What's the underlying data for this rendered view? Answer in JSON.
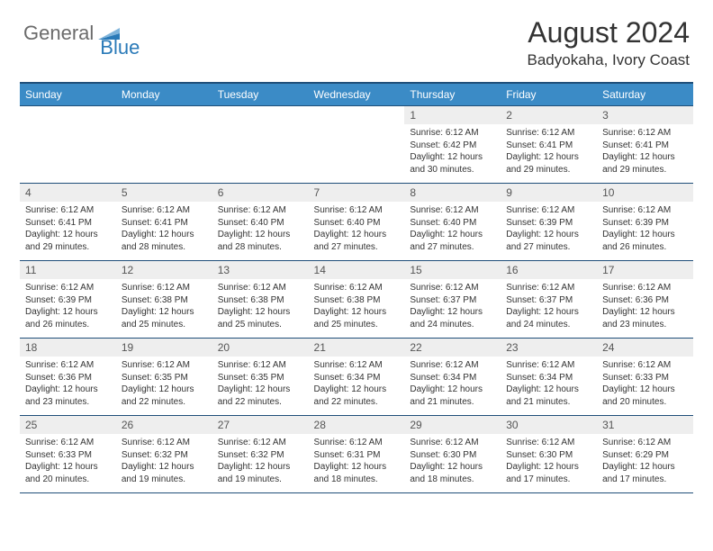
{
  "brand": {
    "text1": "General",
    "text2": "Blue",
    "color1": "#6b6b6b",
    "color2": "#2a7ab8"
  },
  "title": "August 2024",
  "location": "Badyokaha, Ivory Coast",
  "header_bg": "#3b8bc6",
  "border_color": "#1f4e79",
  "daynum_bg": "#eeeeee",
  "weekdays": [
    "Sunday",
    "Monday",
    "Tuesday",
    "Wednesday",
    "Thursday",
    "Friday",
    "Saturday"
  ],
  "weeks": [
    [
      null,
      null,
      null,
      null,
      {
        "d": "1",
        "sr": "6:12 AM",
        "ss": "6:42 PM",
        "dl": "12 hours and 30 minutes."
      },
      {
        "d": "2",
        "sr": "6:12 AM",
        "ss": "6:41 PM",
        "dl": "12 hours and 29 minutes."
      },
      {
        "d": "3",
        "sr": "6:12 AM",
        "ss": "6:41 PM",
        "dl": "12 hours and 29 minutes."
      }
    ],
    [
      {
        "d": "4",
        "sr": "6:12 AM",
        "ss": "6:41 PM",
        "dl": "12 hours and 29 minutes."
      },
      {
        "d": "5",
        "sr": "6:12 AM",
        "ss": "6:41 PM",
        "dl": "12 hours and 28 minutes."
      },
      {
        "d": "6",
        "sr": "6:12 AM",
        "ss": "6:40 PM",
        "dl": "12 hours and 28 minutes."
      },
      {
        "d": "7",
        "sr": "6:12 AM",
        "ss": "6:40 PM",
        "dl": "12 hours and 27 minutes."
      },
      {
        "d": "8",
        "sr": "6:12 AM",
        "ss": "6:40 PM",
        "dl": "12 hours and 27 minutes."
      },
      {
        "d": "9",
        "sr": "6:12 AM",
        "ss": "6:39 PM",
        "dl": "12 hours and 27 minutes."
      },
      {
        "d": "10",
        "sr": "6:12 AM",
        "ss": "6:39 PM",
        "dl": "12 hours and 26 minutes."
      }
    ],
    [
      {
        "d": "11",
        "sr": "6:12 AM",
        "ss": "6:39 PM",
        "dl": "12 hours and 26 minutes."
      },
      {
        "d": "12",
        "sr": "6:12 AM",
        "ss": "6:38 PM",
        "dl": "12 hours and 25 minutes."
      },
      {
        "d": "13",
        "sr": "6:12 AM",
        "ss": "6:38 PM",
        "dl": "12 hours and 25 minutes."
      },
      {
        "d": "14",
        "sr": "6:12 AM",
        "ss": "6:38 PM",
        "dl": "12 hours and 25 minutes."
      },
      {
        "d": "15",
        "sr": "6:12 AM",
        "ss": "6:37 PM",
        "dl": "12 hours and 24 minutes."
      },
      {
        "d": "16",
        "sr": "6:12 AM",
        "ss": "6:37 PM",
        "dl": "12 hours and 24 minutes."
      },
      {
        "d": "17",
        "sr": "6:12 AM",
        "ss": "6:36 PM",
        "dl": "12 hours and 23 minutes."
      }
    ],
    [
      {
        "d": "18",
        "sr": "6:12 AM",
        "ss": "6:36 PM",
        "dl": "12 hours and 23 minutes."
      },
      {
        "d": "19",
        "sr": "6:12 AM",
        "ss": "6:35 PM",
        "dl": "12 hours and 22 minutes."
      },
      {
        "d": "20",
        "sr": "6:12 AM",
        "ss": "6:35 PM",
        "dl": "12 hours and 22 minutes."
      },
      {
        "d": "21",
        "sr": "6:12 AM",
        "ss": "6:34 PM",
        "dl": "12 hours and 22 minutes."
      },
      {
        "d": "22",
        "sr": "6:12 AM",
        "ss": "6:34 PM",
        "dl": "12 hours and 21 minutes."
      },
      {
        "d": "23",
        "sr": "6:12 AM",
        "ss": "6:34 PM",
        "dl": "12 hours and 21 minutes."
      },
      {
        "d": "24",
        "sr": "6:12 AM",
        "ss": "6:33 PM",
        "dl": "12 hours and 20 minutes."
      }
    ],
    [
      {
        "d": "25",
        "sr": "6:12 AM",
        "ss": "6:33 PM",
        "dl": "12 hours and 20 minutes."
      },
      {
        "d": "26",
        "sr": "6:12 AM",
        "ss": "6:32 PM",
        "dl": "12 hours and 19 minutes."
      },
      {
        "d": "27",
        "sr": "6:12 AM",
        "ss": "6:32 PM",
        "dl": "12 hours and 19 minutes."
      },
      {
        "d": "28",
        "sr": "6:12 AM",
        "ss": "6:31 PM",
        "dl": "12 hours and 18 minutes."
      },
      {
        "d": "29",
        "sr": "6:12 AM",
        "ss": "6:30 PM",
        "dl": "12 hours and 18 minutes."
      },
      {
        "d": "30",
        "sr": "6:12 AM",
        "ss": "6:30 PM",
        "dl": "12 hours and 17 minutes."
      },
      {
        "d": "31",
        "sr": "6:12 AM",
        "ss": "6:29 PM",
        "dl": "12 hours and 17 minutes."
      }
    ]
  ],
  "labels": {
    "sunrise": "Sunrise:",
    "sunset": "Sunset:",
    "daylight": "Daylight:"
  }
}
